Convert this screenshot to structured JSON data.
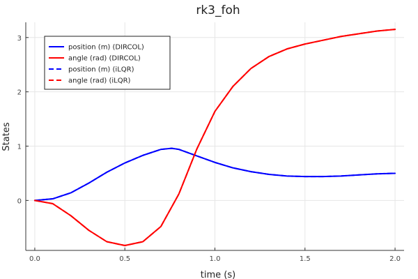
{
  "chart_data": {
    "type": "line",
    "title": "rk3_foh",
    "xlabel": "time (s)",
    "ylabel": "States",
    "xlim": [
      -0.05,
      2.05
    ],
    "ylim": [
      -0.92,
      3.28
    ],
    "x_ticks": [
      0.0,
      0.5,
      1.0,
      1.5,
      2.0
    ],
    "x_tick_labels": [
      "0.0",
      "0.5",
      "1.0",
      "1.5",
      "2.0"
    ],
    "y_ticks": [
      0,
      1,
      2,
      3
    ],
    "y_tick_labels": [
      "0",
      "1",
      "2",
      "3"
    ],
    "grid": true,
    "legend_position": "top-left",
    "series": [
      {
        "name": "position (m) (DIRCOL)",
        "color": "#0000ff",
        "dash": "solid",
        "x": [
          0.0,
          0.1,
          0.2,
          0.3,
          0.4,
          0.5,
          0.6,
          0.7,
          0.76,
          0.8,
          0.9,
          1.0,
          1.1,
          1.2,
          1.3,
          1.4,
          1.5,
          1.6,
          1.7,
          1.8,
          1.9,
          2.0
        ],
        "values": [
          0.0,
          0.03,
          0.14,
          0.32,
          0.52,
          0.69,
          0.83,
          0.94,
          0.96,
          0.94,
          0.82,
          0.7,
          0.6,
          0.53,
          0.48,
          0.45,
          0.44,
          0.44,
          0.45,
          0.47,
          0.49,
          0.5
        ]
      },
      {
        "name": "angle (rad) (DIRCOL)",
        "color": "#ff0000",
        "dash": "solid",
        "x": [
          0.0,
          0.1,
          0.2,
          0.3,
          0.4,
          0.5,
          0.6,
          0.7,
          0.8,
          0.9,
          1.0,
          1.1,
          1.2,
          1.3,
          1.4,
          1.5,
          1.6,
          1.7,
          1.8,
          1.9,
          2.0
        ],
        "values": [
          0.0,
          -0.06,
          -0.28,
          -0.55,
          -0.76,
          -0.83,
          -0.76,
          -0.48,
          0.12,
          0.95,
          1.64,
          2.1,
          2.43,
          2.65,
          2.79,
          2.88,
          2.95,
          3.02,
          3.07,
          3.12,
          3.15
        ]
      },
      {
        "name": "position (m) (iLQR)",
        "color": "#0000ff",
        "dash": "dashed",
        "x": [
          0.0,
          0.1,
          0.2,
          0.3,
          0.4,
          0.5,
          0.6,
          0.7,
          0.76,
          0.8,
          0.9,
          1.0,
          1.1,
          1.2,
          1.3,
          1.4,
          1.5,
          1.6,
          1.7,
          1.8,
          1.9,
          2.0
        ],
        "values": [
          0.0,
          0.03,
          0.14,
          0.32,
          0.52,
          0.69,
          0.83,
          0.94,
          0.96,
          0.94,
          0.82,
          0.7,
          0.6,
          0.53,
          0.48,
          0.45,
          0.44,
          0.44,
          0.45,
          0.47,
          0.49,
          0.5
        ]
      },
      {
        "name": "angle (rad) (iLQR)",
        "color": "#ff0000",
        "dash": "dashed",
        "x": [
          0.0,
          0.1,
          0.2,
          0.3,
          0.4,
          0.5,
          0.6,
          0.7,
          0.8,
          0.9,
          1.0,
          1.1,
          1.2,
          1.3,
          1.4,
          1.5,
          1.6,
          1.7,
          1.8,
          1.9,
          2.0
        ],
        "values": [
          0.0,
          -0.06,
          -0.28,
          -0.55,
          -0.76,
          -0.83,
          -0.76,
          -0.48,
          0.12,
          0.95,
          1.64,
          2.1,
          2.43,
          2.65,
          2.79,
          2.88,
          2.95,
          3.02,
          3.07,
          3.12,
          3.15
        ]
      }
    ]
  }
}
